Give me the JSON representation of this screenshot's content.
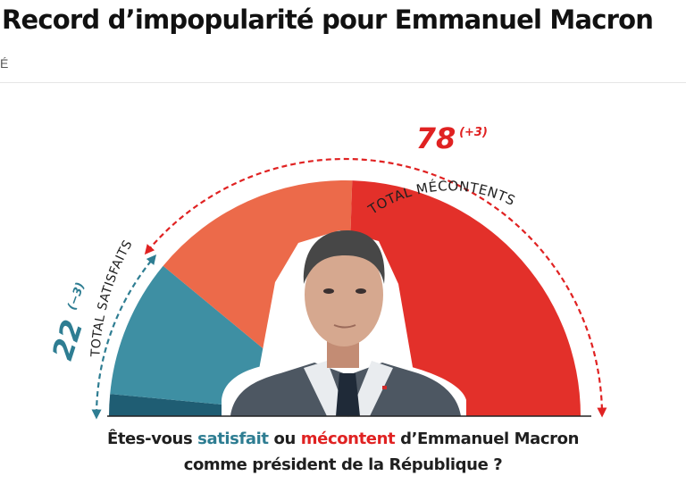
{
  "headline": "Record d’impopularité pour Emmanuel Macron",
  "byline_fragment": "É",
  "question": {
    "prefix": "Êtes-vous ",
    "satisfait": "satisfait",
    "ou": " ou ",
    "mecontent": "mécontent",
    "suffix": " d’Emmanuel Macron",
    "line2": "comme président de la République ?"
  },
  "chart_data": {
    "type": "pie",
    "title": "",
    "shape": "half-donut",
    "slices": [
      {
        "value": 3,
        "color": "#1f5d73"
      },
      {
        "value": 19,
        "color": "#3e8fa3"
      },
      {
        "value": 29,
        "color": "#ec6a4a"
      },
      {
        "value": 49,
        "color": "#e3302a"
      }
    ],
    "totals": [
      {
        "value": "22",
        "change": "(−3)",
        "label": "TOTAL SATISFAITS",
        "color": "#2e7d92"
      },
      {
        "value": "78",
        "change": "(+3)",
        "label": "TOTAL MÉCONTENTS",
        "color": "#e02222"
      }
    ],
    "colors": {
      "satisfied": "#2e7d92",
      "discontent": "#e02222",
      "photo_background": "#ffffff",
      "suit": "#4c5762",
      "skin": "#d6a88f"
    }
  }
}
